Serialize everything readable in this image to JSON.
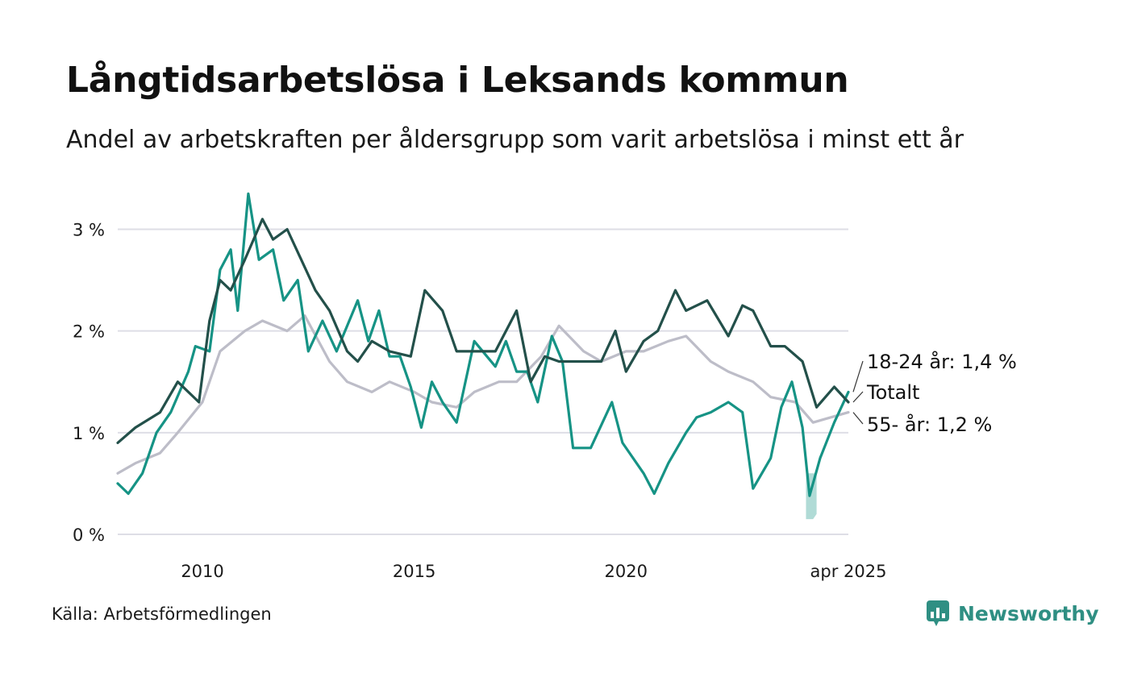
{
  "title": "Långtidsarbetslösa i Leksands kommun",
  "subtitle": "Andel av arbetskraften per åldersgrupp som varit arbetslösa i minst ett år",
  "source": "Källa: Arbetsförmedlingen",
  "brand": "Newsworthy",
  "colors": {
    "total": "#23504a",
    "young": "#169385",
    "old": "#bdbdc8",
    "band": "#a7d7d2",
    "grid": "#dedee6",
    "brand": "#2f8f83"
  },
  "chart_data": {
    "type": "line",
    "y_ticks": [
      "0 %",
      "1 %",
      "2 %",
      "3 %"
    ],
    "y_tick_values": [
      0,
      1,
      2,
      3
    ],
    "x_ticks": [
      "2010",
      "2015",
      "2020",
      "apr 2025"
    ],
    "x_tick_values": [
      "2010-01",
      "2015-01",
      "2020-01",
      "2025-04"
    ],
    "ylim": [
      0,
      3.4
    ],
    "xlim": [
      "2008-01",
      "2025-04"
    ],
    "grid": true,
    "series": [
      {
        "name": "Totalt",
        "key": "total",
        "label": "Totalt",
        "points": [
          [
            "2008-01",
            0.9
          ],
          [
            "2008-06",
            1.05
          ],
          [
            "2009-01",
            1.2
          ],
          [
            "2009-06",
            1.5
          ],
          [
            "2009-12",
            1.3
          ],
          [
            "2010-03",
            2.1
          ],
          [
            "2010-06",
            2.5
          ],
          [
            "2010-09",
            2.4
          ],
          [
            "2011-01",
            2.7
          ],
          [
            "2011-06",
            3.1
          ],
          [
            "2011-09",
            2.9
          ],
          [
            "2012-01",
            3.0
          ],
          [
            "2012-05",
            2.7
          ],
          [
            "2012-09",
            2.4
          ],
          [
            "2013-01",
            2.2
          ],
          [
            "2013-06",
            1.8
          ],
          [
            "2013-09",
            1.7
          ],
          [
            "2014-01",
            1.9
          ],
          [
            "2014-06",
            1.8
          ],
          [
            "2014-12",
            1.75
          ],
          [
            "2015-04",
            2.4
          ],
          [
            "2015-09",
            2.2
          ],
          [
            "2016-01",
            1.8
          ],
          [
            "2016-06",
            1.8
          ],
          [
            "2016-12",
            1.8
          ],
          [
            "2017-06",
            2.2
          ],
          [
            "2017-10",
            1.5
          ],
          [
            "2018-02",
            1.75
          ],
          [
            "2018-06",
            1.7
          ],
          [
            "2018-12",
            1.7
          ],
          [
            "2019-06",
            1.7
          ],
          [
            "2019-10",
            2.0
          ],
          [
            "2020-01",
            1.6
          ],
          [
            "2020-06",
            1.9
          ],
          [
            "2020-10",
            2.0
          ],
          [
            "2021-03",
            2.4
          ],
          [
            "2021-06",
            2.2
          ],
          [
            "2021-12",
            2.3
          ],
          [
            "2022-06",
            1.95
          ],
          [
            "2022-10",
            2.25
          ],
          [
            "2023-01",
            2.2
          ],
          [
            "2023-06",
            1.85
          ],
          [
            "2023-10",
            1.85
          ],
          [
            "2024-03",
            1.7
          ],
          [
            "2024-07",
            1.25
          ],
          [
            "2024-12",
            1.45
          ],
          [
            "2025-04",
            1.3
          ]
        ]
      },
      {
        "name": "18-24 år",
        "key": "young",
        "label": "18-24 år: 1,4 %",
        "points": [
          [
            "2008-01",
            0.5
          ],
          [
            "2008-04",
            0.4
          ],
          [
            "2008-08",
            0.6
          ],
          [
            "2008-12",
            1.0
          ],
          [
            "2009-04",
            1.2
          ],
          [
            "2009-09",
            1.6
          ],
          [
            "2009-11",
            1.85
          ],
          [
            "2010-03",
            1.8
          ],
          [
            "2010-06",
            2.6
          ],
          [
            "2010-09",
            2.8
          ],
          [
            "2010-11",
            2.2
          ],
          [
            "2011-02",
            3.35
          ],
          [
            "2011-05",
            2.7
          ],
          [
            "2011-09",
            2.8
          ],
          [
            "2011-12",
            2.3
          ],
          [
            "2012-04",
            2.5
          ],
          [
            "2012-07",
            1.8
          ],
          [
            "2012-11",
            2.1
          ],
          [
            "2013-03",
            1.8
          ],
          [
            "2013-09",
            2.3
          ],
          [
            "2013-12",
            1.9
          ],
          [
            "2014-03",
            2.2
          ],
          [
            "2014-06",
            1.75
          ],
          [
            "2014-09",
            1.75
          ],
          [
            "2014-12",
            1.45
          ],
          [
            "2015-03",
            1.05
          ],
          [
            "2015-06",
            1.5
          ],
          [
            "2015-09",
            1.3
          ],
          [
            "2016-01",
            1.1
          ],
          [
            "2016-06",
            1.9
          ],
          [
            "2016-12",
            1.65
          ],
          [
            "2017-03",
            1.9
          ],
          [
            "2017-06",
            1.6
          ],
          [
            "2017-09",
            1.6
          ],
          [
            "2017-12",
            1.3
          ],
          [
            "2018-04",
            1.95
          ],
          [
            "2018-07",
            1.7
          ],
          [
            "2018-10",
            0.85
          ],
          [
            "2019-03",
            0.85
          ],
          [
            "2019-09",
            1.3
          ],
          [
            "2019-12",
            0.9
          ],
          [
            "2020-06",
            0.6
          ],
          [
            "2020-09",
            0.4
          ],
          [
            "2021-01",
            0.7
          ],
          [
            "2021-06",
            1.0
          ],
          [
            "2021-09",
            1.15
          ],
          [
            "2022-01",
            1.2
          ],
          [
            "2022-06",
            1.3
          ],
          [
            "2022-10",
            1.2
          ],
          [
            "2023-01",
            0.45
          ],
          [
            "2023-06",
            0.75
          ],
          [
            "2023-09",
            1.25
          ],
          [
            "2023-12",
            1.5
          ],
          [
            "2024-03",
            1.05
          ],
          [
            "2024-05",
            0.38
          ],
          [
            "2024-08",
            0.75
          ],
          [
            "2024-12",
            1.1
          ],
          [
            "2025-04",
            1.4
          ]
        ]
      },
      {
        "name": "55- år",
        "key": "old",
        "label": "55- år: 1,2 %",
        "points": [
          [
            "2008-01",
            0.6
          ],
          [
            "2008-06",
            0.7
          ],
          [
            "2009-01",
            0.8
          ],
          [
            "2009-06",
            1.0
          ],
          [
            "2010-01",
            1.3
          ],
          [
            "2010-06",
            1.8
          ],
          [
            "2011-01",
            2.0
          ],
          [
            "2011-06",
            2.1
          ],
          [
            "2012-01",
            2.0
          ],
          [
            "2012-06",
            2.15
          ],
          [
            "2013-01",
            1.7
          ],
          [
            "2013-06",
            1.5
          ],
          [
            "2014-01",
            1.4
          ],
          [
            "2014-06",
            1.5
          ],
          [
            "2015-01",
            1.4
          ],
          [
            "2015-06",
            1.3
          ],
          [
            "2016-01",
            1.25
          ],
          [
            "2016-06",
            1.4
          ],
          [
            "2017-01",
            1.5
          ],
          [
            "2017-06",
            1.5
          ],
          [
            "2018-01",
            1.75
          ],
          [
            "2018-06",
            2.05
          ],
          [
            "2019-01",
            1.8
          ],
          [
            "2019-06",
            1.7
          ],
          [
            "2020-01",
            1.8
          ],
          [
            "2020-06",
            1.8
          ],
          [
            "2021-01",
            1.9
          ],
          [
            "2021-06",
            1.95
          ],
          [
            "2022-01",
            1.7
          ],
          [
            "2022-06",
            1.6
          ],
          [
            "2023-01",
            1.5
          ],
          [
            "2023-06",
            1.35
          ],
          [
            "2024-01",
            1.3
          ],
          [
            "2024-06",
            1.1
          ],
          [
            "2025-04",
            1.2
          ]
        ]
      }
    ],
    "band": {
      "series": "18-24 år",
      "points": [
        [
          "2024-04",
          0.15,
          0.6
        ],
        [
          "2024-06",
          0.15,
          0.6
        ],
        [
          "2024-07",
          0.2,
          0.6
        ]
      ]
    }
  }
}
